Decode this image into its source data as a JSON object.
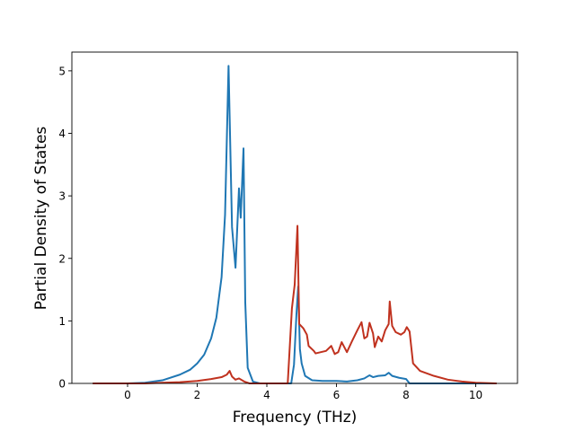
{
  "chart_data": {
    "type": "line",
    "title": "",
    "xlabel": "Frequency (THz)",
    "ylabel": "Partial Density of States",
    "xlim": [
      -1.6,
      11.2
    ],
    "ylim": [
      0,
      5.3
    ],
    "xticks": [
      0,
      2,
      4,
      6,
      8,
      10
    ],
    "yticks": [
      0,
      1,
      2,
      3,
      4,
      5
    ],
    "xtick_labels": [
      "0",
      "2",
      "4",
      "6",
      "8",
      "10"
    ],
    "ytick_labels": [
      "0",
      "1",
      "2",
      "3",
      "4",
      "5"
    ],
    "grid": false,
    "legend": "none",
    "series": [
      {
        "color": "#1f77b4",
        "points": [
          [
            -1.0,
            0.0
          ],
          [
            0.0,
            0.0
          ],
          [
            0.5,
            0.01
          ],
          [
            1.0,
            0.05
          ],
          [
            1.5,
            0.14
          ],
          [
            1.8,
            0.22
          ],
          [
            2.0,
            0.32
          ],
          [
            2.2,
            0.46
          ],
          [
            2.4,
            0.72
          ],
          [
            2.55,
            1.05
          ],
          [
            2.7,
            1.7
          ],
          [
            2.8,
            2.7
          ],
          [
            2.9,
            5.08
          ],
          [
            3.0,
            2.5
          ],
          [
            3.1,
            1.85
          ],
          [
            3.2,
            3.12
          ],
          [
            3.25,
            2.65
          ],
          [
            3.33,
            3.76
          ],
          [
            3.38,
            1.3
          ],
          [
            3.45,
            0.25
          ],
          [
            3.6,
            0.03
          ],
          [
            3.8,
            0.0
          ],
          [
            4.7,
            0.0
          ],
          [
            4.78,
            0.3
          ],
          [
            4.85,
            1.1
          ],
          [
            4.9,
            1.55
          ],
          [
            4.95,
            0.55
          ],
          [
            5.0,
            0.32
          ],
          [
            5.1,
            0.12
          ],
          [
            5.3,
            0.05
          ],
          [
            5.6,
            0.04
          ],
          [
            6.0,
            0.04
          ],
          [
            6.3,
            0.03
          ],
          [
            6.6,
            0.05
          ],
          [
            6.8,
            0.08
          ],
          [
            6.95,
            0.13
          ],
          [
            7.05,
            0.1
          ],
          [
            7.2,
            0.12
          ],
          [
            7.4,
            0.13
          ],
          [
            7.5,
            0.17
          ],
          [
            7.6,
            0.12
          ],
          [
            7.8,
            0.09
          ],
          [
            8.0,
            0.07
          ],
          [
            8.1,
            0.0
          ],
          [
            10.6,
            0.0
          ]
        ]
      },
      {
        "color": "#c0321f",
        "points": [
          [
            -1.0,
            0.0
          ],
          [
            0.5,
            0.0
          ],
          [
            1.0,
            0.01
          ],
          [
            1.5,
            0.02
          ],
          [
            2.0,
            0.04
          ],
          [
            2.4,
            0.07
          ],
          [
            2.7,
            0.1
          ],
          [
            2.85,
            0.14
          ],
          [
            2.93,
            0.2
          ],
          [
            3.0,
            0.11
          ],
          [
            3.1,
            0.06
          ],
          [
            3.2,
            0.08
          ],
          [
            3.35,
            0.03
          ],
          [
            3.5,
            0.0
          ],
          [
            4.6,
            0.0
          ],
          [
            4.65,
            0.5
          ],
          [
            4.72,
            1.2
          ],
          [
            4.8,
            1.58
          ],
          [
            4.88,
            2.52
          ],
          [
            4.93,
            0.95
          ],
          [
            5.05,
            0.88
          ],
          [
            5.15,
            0.78
          ],
          [
            5.2,
            0.6
          ],
          [
            5.35,
            0.52
          ],
          [
            5.4,
            0.48
          ],
          [
            5.55,
            0.5
          ],
          [
            5.7,
            0.52
          ],
          [
            5.85,
            0.6
          ],
          [
            5.95,
            0.47
          ],
          [
            6.05,
            0.5
          ],
          [
            6.15,
            0.66
          ],
          [
            6.3,
            0.5
          ],
          [
            6.45,
            0.68
          ],
          [
            6.6,
            0.85
          ],
          [
            6.72,
            0.98
          ],
          [
            6.8,
            0.72
          ],
          [
            6.88,
            0.75
          ],
          [
            6.95,
            0.97
          ],
          [
            7.05,
            0.8
          ],
          [
            7.1,
            0.58
          ],
          [
            7.2,
            0.75
          ],
          [
            7.3,
            0.67
          ],
          [
            7.4,
            0.85
          ],
          [
            7.5,
            0.95
          ],
          [
            7.53,
            1.31
          ],
          [
            7.6,
            0.92
          ],
          [
            7.7,
            0.82
          ],
          [
            7.85,
            0.78
          ],
          [
            7.95,
            0.82
          ],
          [
            8.02,
            0.9
          ],
          [
            8.1,
            0.83
          ],
          [
            8.2,
            0.32
          ],
          [
            8.4,
            0.2
          ],
          [
            8.8,
            0.12
          ],
          [
            9.2,
            0.06
          ],
          [
            9.6,
            0.03
          ],
          [
            10.0,
            0.01
          ],
          [
            10.6,
            0.0
          ]
        ]
      }
    ]
  }
}
